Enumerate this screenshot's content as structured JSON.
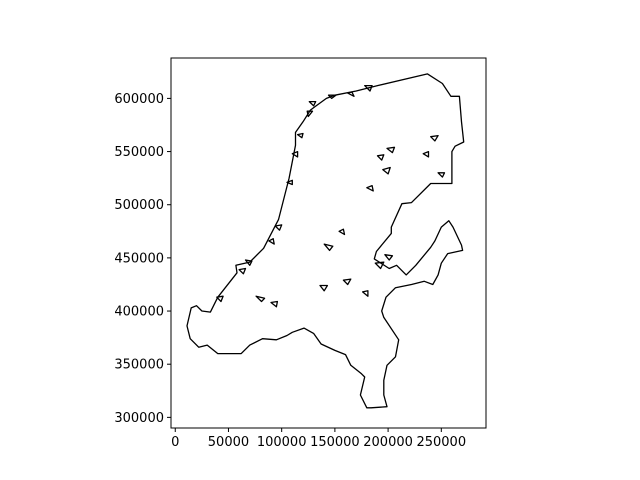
{
  "chart_data": {
    "type": "map",
    "title": "",
    "xlabel": "",
    "ylabel": "",
    "xlim": [
      -4000,
      292000
    ],
    "ylim": [
      290000,
      638000
    ],
    "grid": false,
    "legend": "none",
    "x_ticks": [
      "0",
      "50000",
      "100000",
      "150000",
      "200000",
      "250000"
    ],
    "y_ticks": [
      "300000",
      "350000",
      "400000",
      "450000",
      "500000",
      "550000",
      "600000"
    ],
    "x_tick_values": [
      0,
      50000,
      100000,
      150000,
      200000,
      250000
    ],
    "y_tick_values": [
      300000,
      350000,
      400000,
      450000,
      500000,
      550000,
      600000
    ],
    "boundary": [
      [
        14000,
        374000
      ],
      [
        11000,
        386000
      ],
      [
        15000,
        403000
      ],
      [
        20000,
        405000
      ],
      [
        25000,
        400000
      ],
      [
        33000,
        399000
      ],
      [
        40000,
        413000
      ],
      [
        58000,
        436000
      ],
      [
        57000,
        443000
      ],
      [
        70000,
        446000
      ],
      [
        83000,
        459000
      ],
      [
        97000,
        486000
      ],
      [
        107000,
        525000
      ],
      [
        113000,
        556000
      ],
      [
        113000,
        568000
      ],
      [
        120000,
        578000
      ],
      [
        127000,
        589000
      ],
      [
        131000,
        592000
      ],
      [
        142000,
        600000
      ],
      [
        150000,
        603000
      ],
      [
        170000,
        607000
      ],
      [
        190000,
        612000
      ],
      [
        237000,
        623000
      ],
      [
        251000,
        614000
      ],
      [
        259000,
        602000
      ],
      [
        267000,
        602000
      ],
      [
        269000,
        578000
      ],
      [
        271000,
        559000
      ],
      [
        263000,
        555000
      ],
      [
        260000,
        550000
      ],
      [
        260000,
        520000
      ],
      [
        240000,
        520000
      ],
      [
        227000,
        507000
      ],
      [
        222000,
        502000
      ],
      [
        213000,
        501000
      ],
      [
        203000,
        479000
      ],
      [
        203000,
        473000
      ],
      [
        189000,
        456000
      ],
      [
        187000,
        449000
      ],
      [
        201000,
        440000
      ],
      [
        208000,
        443000
      ],
      [
        217000,
        434000
      ],
      [
        226000,
        443000
      ],
      [
        240000,
        460000
      ],
      [
        244000,
        466000
      ],
      [
        250000,
        479000
      ],
      [
        257000,
        485000
      ],
      [
        261000,
        479000
      ],
      [
        269000,
        462000
      ],
      [
        270000,
        457000
      ],
      [
        256000,
        454000
      ],
      [
        250000,
        445000
      ],
      [
        247000,
        434000
      ],
      [
        242000,
        425000
      ],
      [
        234000,
        428000
      ],
      [
        222000,
        425000
      ],
      [
        207000,
        422000
      ],
      [
        198000,
        413000
      ],
      [
        194000,
        400000
      ],
      [
        196000,
        394000
      ],
      [
        210000,
        373000
      ],
      [
        207000,
        357000
      ],
      [
        199000,
        349000
      ],
      [
        196000,
        335000
      ],
      [
        196000,
        321000
      ],
      [
        199000,
        310000
      ],
      [
        184000,
        309000
      ],
      [
        180000,
        309000
      ],
      [
        174000,
        321000
      ],
      [
        178000,
        338000
      ],
      [
        175000,
        341000
      ],
      [
        165000,
        349000
      ],
      [
        160000,
        359000
      ],
      [
        150000,
        363000
      ],
      [
        137000,
        369000
      ],
      [
        130000,
        379000
      ],
      [
        121000,
        384000
      ],
      [
        110000,
        380000
      ],
      [
        105000,
        377000
      ],
      [
        95000,
        373000
      ],
      [
        82000,
        374000
      ],
      [
        70000,
        368000
      ],
      [
        62000,
        360000
      ],
      [
        54000,
        360000
      ],
      [
        40000,
        360000
      ],
      [
        30000,
        368000
      ],
      [
        22000,
        366000
      ],
      [
        14000,
        374000
      ]
    ],
    "islands": [
      [
        [
          147000,
          600000
        ],
        [
          151000,
          603000
        ],
        [
          144000,
          603000
        ]
      ],
      [
        [
          162000,
          605000
        ],
        [
          168000,
          602000
        ],
        [
          166000,
          606000
        ]
      ],
      [
        [
          178000,
          612000
        ],
        [
          183000,
          607000
        ],
        [
          185000,
          612000
        ]
      ],
      [
        [
          125000,
          583000
        ],
        [
          129000,
          588000
        ],
        [
          124000,
          588000
        ]
      ],
      [
        [
          126000,
          597000
        ],
        [
          130000,
          593000
        ],
        [
          132000,
          597000
        ]
      ],
      [
        [
          115000,
          566000
        ],
        [
          119000,
          563000
        ],
        [
          120000,
          567000
        ]
      ],
      [
        [
          110000,
          548000
        ],
        [
          115000,
          545000
        ],
        [
          115000,
          550000
        ]
      ],
      [
        [
          105000,
          521000
        ],
        [
          110000,
          519000
        ],
        [
          110000,
          523000
        ]
      ],
      [
        [
          94000,
          480000
        ],
        [
          98000,
          476000
        ],
        [
          100000,
          481000
        ]
      ],
      [
        [
          88000,
          466000
        ],
        [
          93000,
          463000
        ],
        [
          92000,
          468000
        ]
      ],
      [
        [
          66000,
          448000
        ],
        [
          70000,
          443000
        ],
        [
          72000,
          447000
        ]
      ],
      [
        [
          60000,
          439000
        ],
        [
          64000,
          435000
        ],
        [
          66000,
          440000
        ]
      ],
      [
        [
          39000,
          413000
        ],
        [
          43000,
          409000
        ],
        [
          45000,
          414000
        ]
      ],
      [
        [
          76000,
          414000
        ],
        [
          81000,
          409000
        ],
        [
          84000,
          412000
        ]
      ],
      [
        [
          90000,
          408000
        ],
        [
          95000,
          404000
        ],
        [
          96000,
          409000
        ]
      ],
      [
        [
          136000,
          424000
        ],
        [
          140000,
          419000
        ],
        [
          143000,
          424000
        ]
      ],
      [
        [
          140000,
          463000
        ],
        [
          145000,
          457000
        ],
        [
          148000,
          461000
        ]
      ],
      [
        [
          154000,
          475000
        ],
        [
          159000,
          472000
        ],
        [
          158000,
          477000
        ]
      ],
      [
        [
          158000,
          429000
        ],
        [
          162000,
          425000
        ],
        [
          165000,
          430000
        ]
      ],
      [
        [
          176000,
          418000
        ],
        [
          181000,
          414000
        ],
        [
          181000,
          419000
        ]
      ],
      [
        [
          188000,
          445000
        ],
        [
          193000,
          440000
        ],
        [
          196000,
          446000
        ]
      ],
      [
        [
          197000,
          453000
        ],
        [
          201000,
          448000
        ],
        [
          204000,
          452000
        ]
      ],
      [
        [
          199000,
          553000
        ],
        [
          204000,
          549000
        ],
        [
          206000,
          554000
        ]
      ],
      [
        [
          190000,
          546000
        ],
        [
          194000,
          542000
        ],
        [
          196000,
          547000
        ]
      ],
      [
        [
          195000,
          533000
        ],
        [
          200000,
          529000
        ],
        [
          202000,
          535000
        ]
      ],
      [
        [
          180000,
          516000
        ],
        [
          186000,
          513000
        ],
        [
          185000,
          518000
        ]
      ],
      [
        [
          233000,
          548000
        ],
        [
          238000,
          545000
        ],
        [
          238000,
          550000
        ]
      ],
      [
        [
          240000,
          564000
        ],
        [
          244000,
          560000
        ],
        [
          247000,
          565000
        ]
      ],
      [
        [
          247000,
          530000
        ],
        [
          251000,
          526000
        ],
        [
          253000,
          530000
        ]
      ]
    ]
  }
}
